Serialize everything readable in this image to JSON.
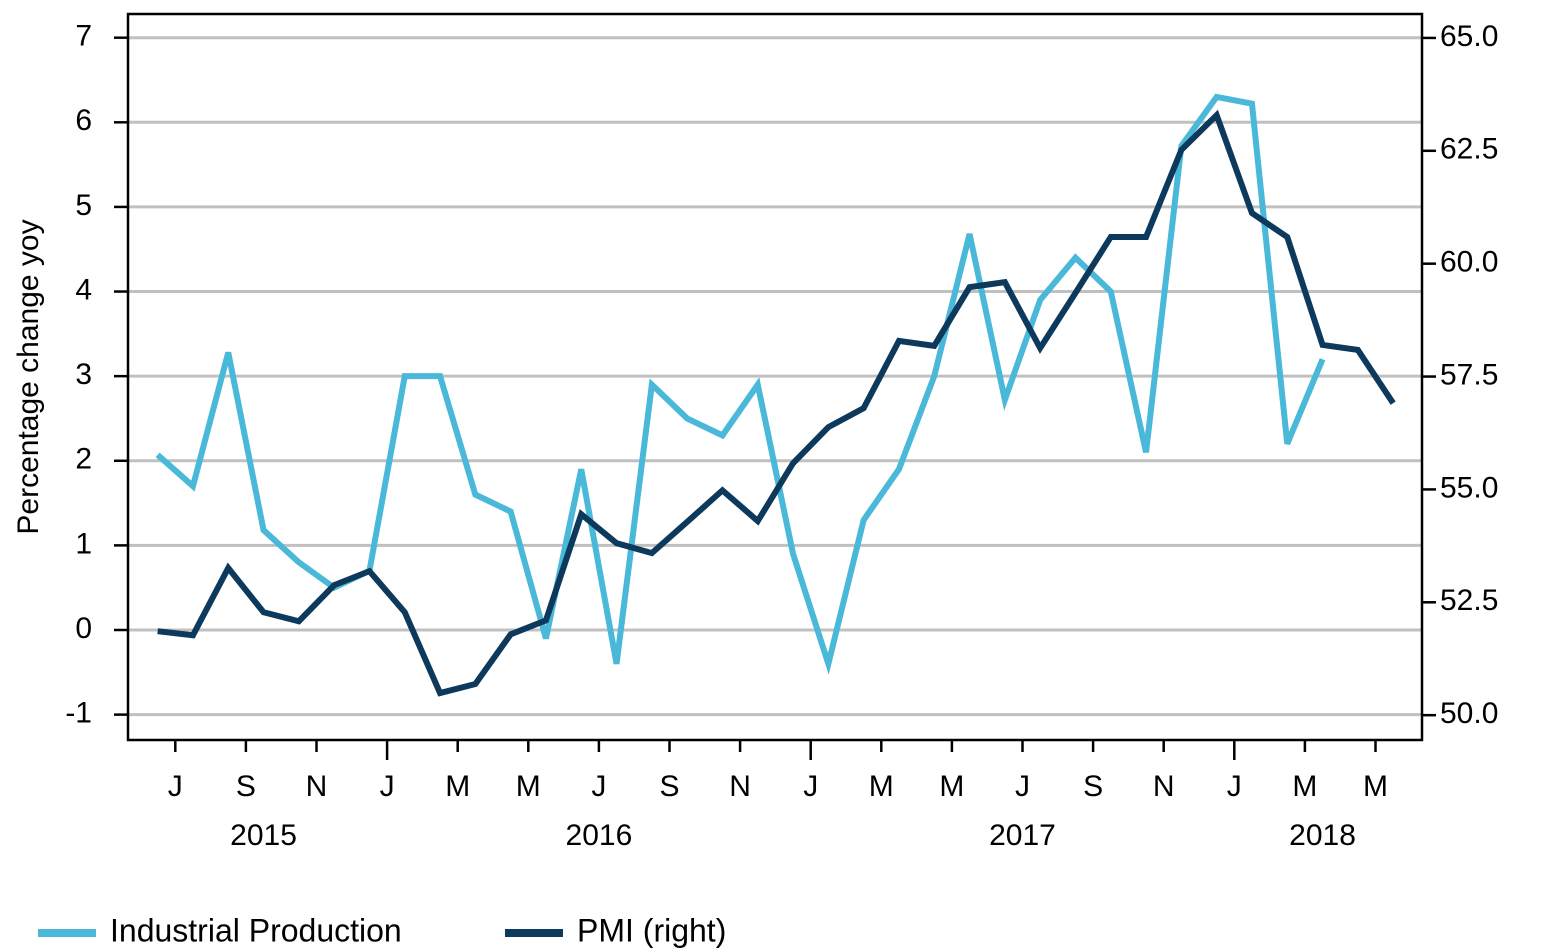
{
  "chart_data": {
    "type": "line",
    "y_label": "Percentage change yoy",
    "categories": [
      null,
      "J",
      null,
      "S",
      null,
      "N",
      null,
      "J",
      null,
      "M",
      null,
      "M",
      null,
      "J",
      null,
      "S",
      null,
      "N",
      null,
      "J",
      null,
      "M",
      null,
      "M",
      null,
      "J",
      null,
      "S",
      null,
      "N",
      null,
      "J",
      null,
      "M",
      null,
      "M"
    ],
    "years": [
      "2015",
      "2016",
      "2017",
      "2018"
    ],
    "series": [
      {
        "name": "Industrial Production",
        "color": "#4ab8d8",
        "axis": "y",
        "values": [
          2.07,
          1.7,
          3.28,
          1.18,
          0.8,
          0.5,
          0.7,
          3.0,
          3.0,
          1.6,
          1.4,
          -0.1,
          1.9,
          -0.4,
          2.9,
          2.5,
          2.3,
          2.9,
          0.9,
          -0.4,
          1.3,
          1.9,
          3.0,
          4.68,
          2.72,
          3.9,
          4.4,
          4.0,
          2.1,
          5.72,
          6.3,
          6.22,
          2.2,
          3.2,
          null,
          null
        ]
      },
      {
        "name": "PMI (right)",
        "color": "#0d3a5c",
        "axis": "y2",
        "values": [
          51.86,
          51.77,
          53.26,
          52.28,
          52.08,
          52.88,
          53.19,
          52.28,
          50.49,
          50.69,
          51.79,
          52.1,
          54.45,
          53.81,
          53.59,
          54.28,
          54.98,
          54.3,
          55.58,
          56.38,
          56.8,
          58.29,
          58.18,
          59.48,
          59.59,
          58.13,
          59.35,
          60.59,
          60.59,
          62.52,
          63.29,
          61.12,
          60.59,
          58.2,
          58.09,
          56.91
        ]
      }
    ],
    "ylim": [
      -1.3,
      7.28
    ],
    "yticks": [
      -1,
      0,
      1,
      2,
      3,
      4,
      5,
      6,
      7
    ],
    "y2lim": [
      49.45,
      65.53
    ],
    "y2ticks": [
      {
        "value": 50,
        "label": "50.0"
      },
      {
        "value": 52.5,
        "label": "52.5"
      },
      {
        "value": 55,
        "label": "55.0"
      },
      {
        "value": 57.5,
        "label": "57.5"
      },
      {
        "value": 60,
        "label": "60.0"
      },
      {
        "value": 62.5,
        "label": "62.5"
      },
      {
        "value": 65,
        "label": "65.0"
      }
    ],
    "grid": true,
    "legend": "bottom-left"
  }
}
